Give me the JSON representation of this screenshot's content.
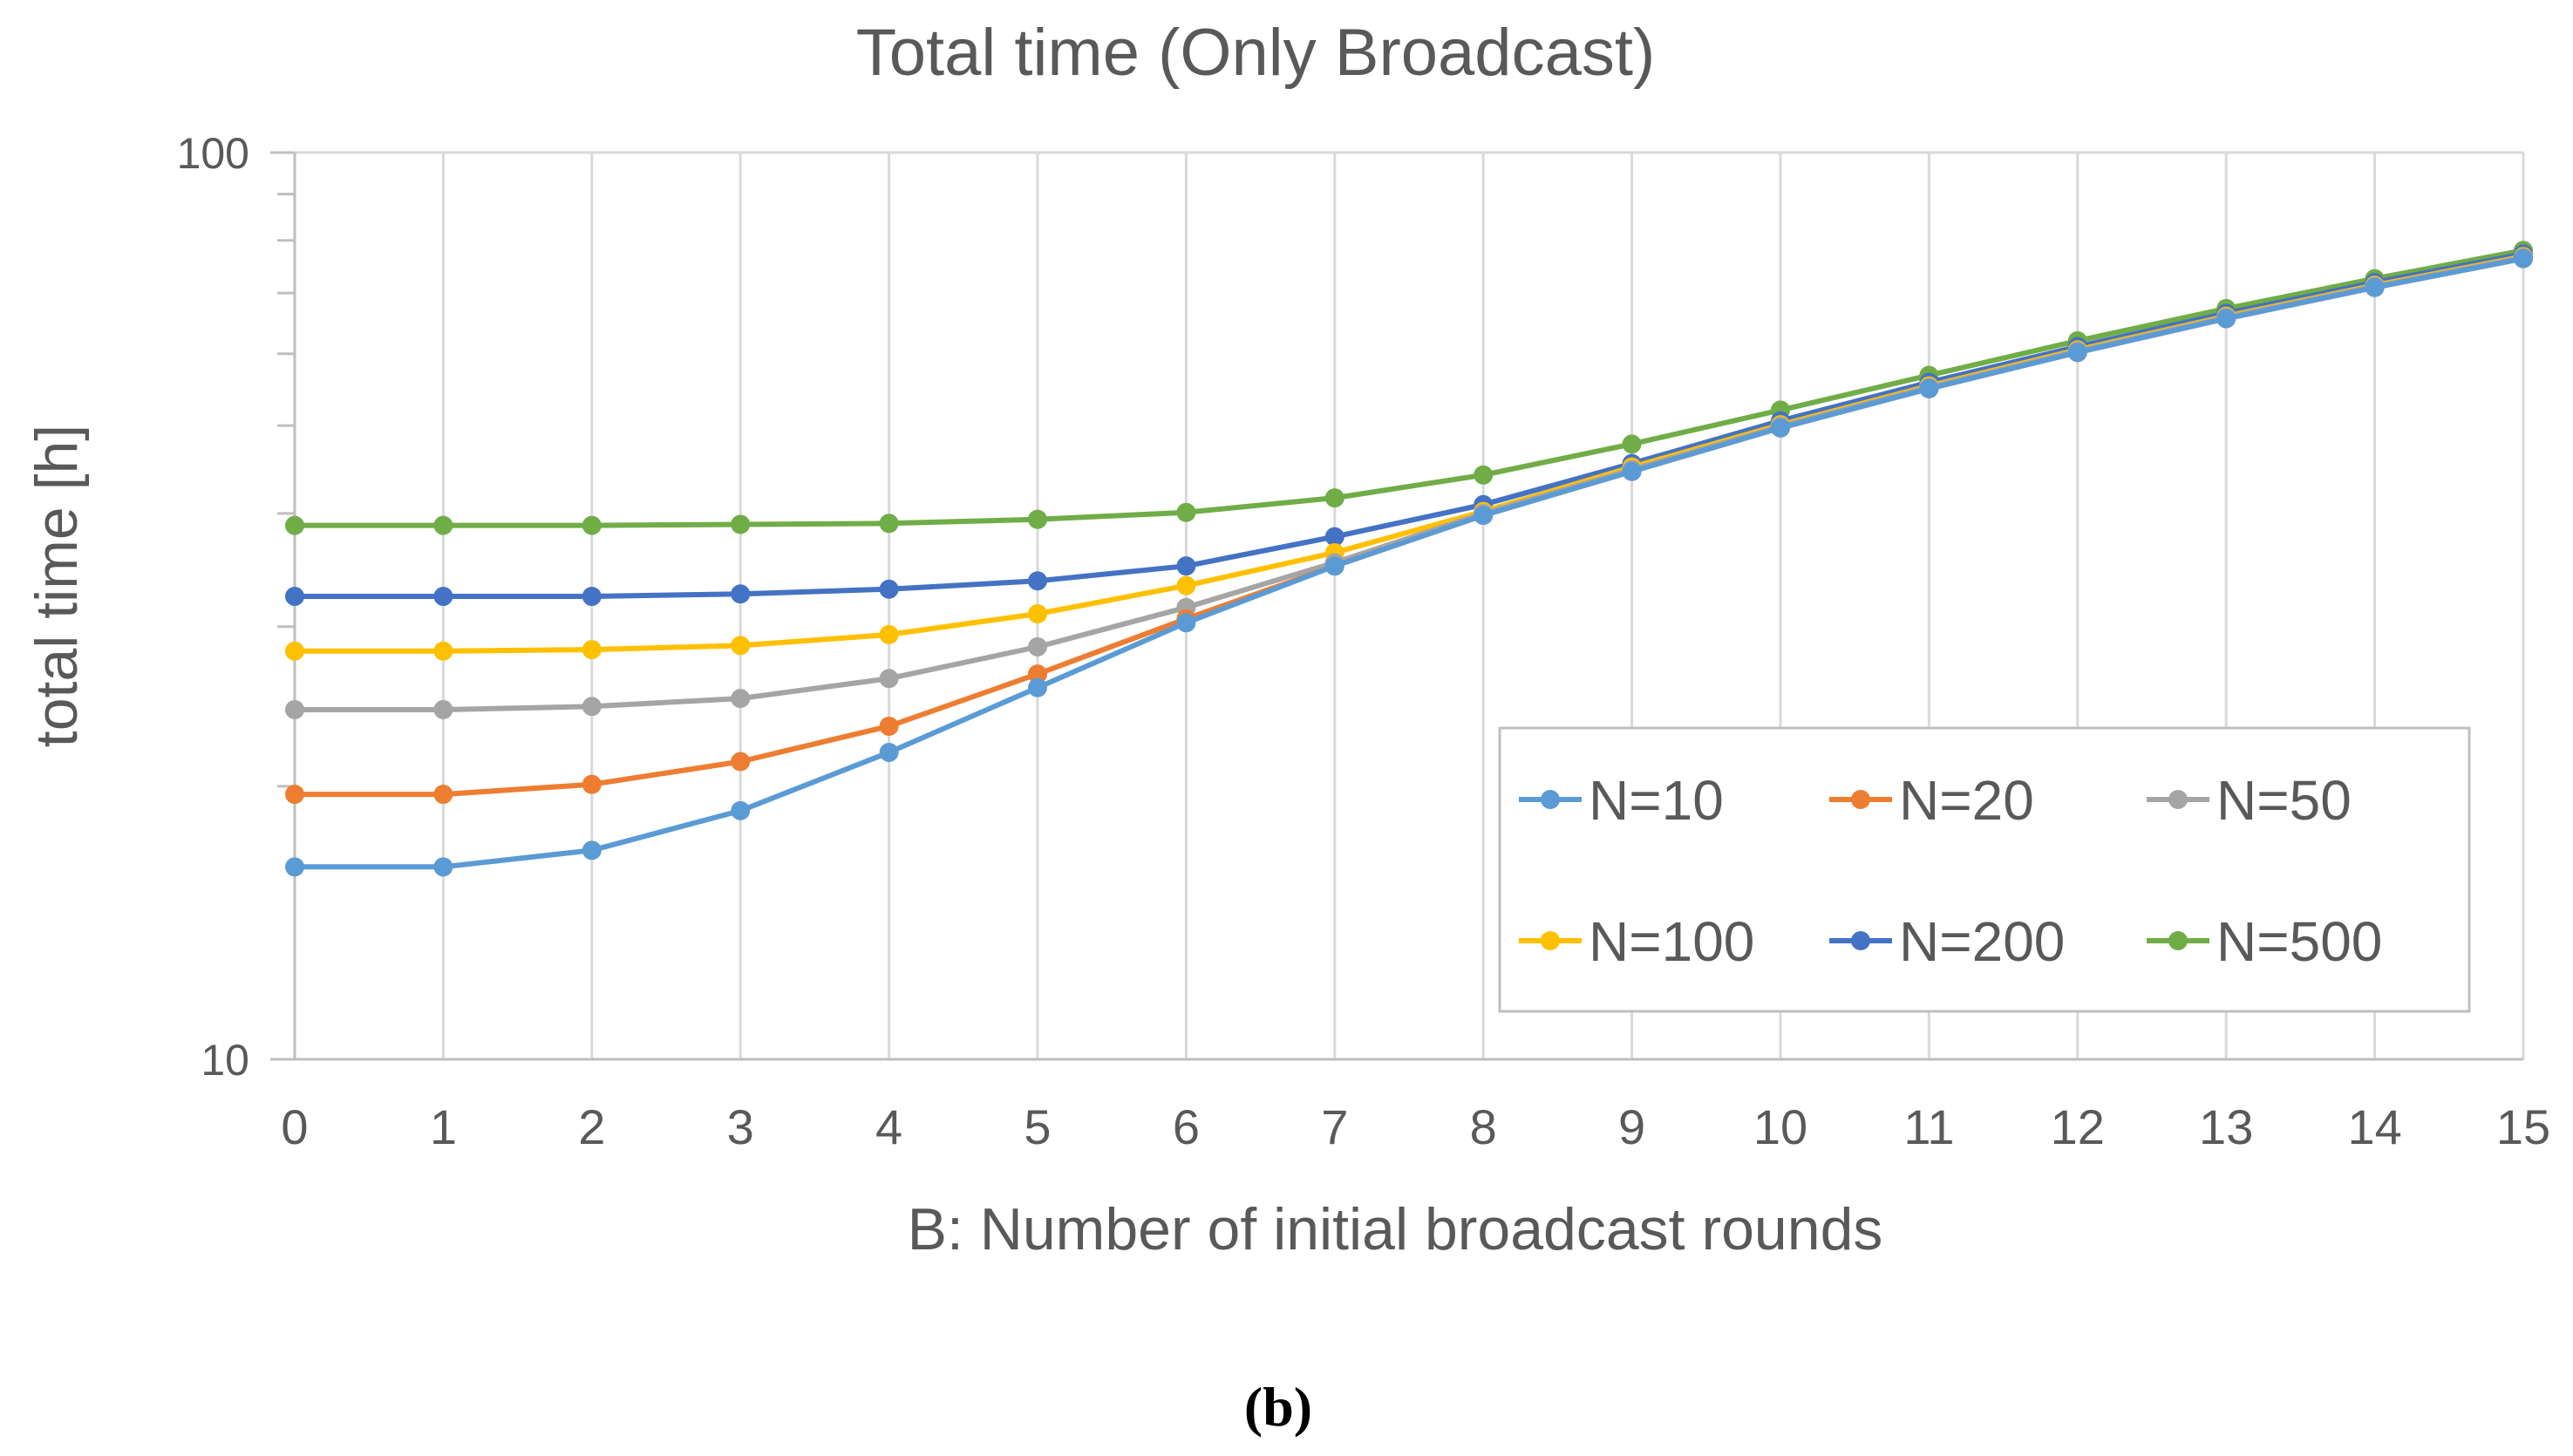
{
  "chart_data": {
    "type": "line",
    "title": "Total time (Only Broadcast)",
    "xlabel": "B: Number of initial broadcast rounds",
    "ylabel": "total time [h]",
    "yscale": "log",
    "ylim": [
      10,
      100
    ],
    "y_tick_labels": [
      "10",
      "100"
    ],
    "x": [
      0,
      1,
      2,
      3,
      4,
      5,
      6,
      7,
      8,
      9,
      10,
      11,
      12,
      13,
      14,
      15
    ],
    "x_tick_labels": [
      "0",
      "1",
      "2",
      "3",
      "4",
      "5",
      "6",
      "7",
      "8",
      "9",
      "10",
      "11",
      "12",
      "13",
      "14",
      "15"
    ],
    "grid": true,
    "legend_position": "bottom-right",
    "series": [
      {
        "name": "N=10",
        "color": "#5B9BD5",
        "values": [
          16.3,
          16.3,
          17.0,
          18.8,
          21.8,
          25.7,
          30.3,
          35.0,
          39.8,
          44.5,
          49.7,
          54.9,
          60.2,
          65.6,
          71.0,
          76.4
        ]
      },
      {
        "name": "N=20",
        "color": "#ED7D31",
        "values": [
          19.6,
          19.6,
          20.1,
          21.3,
          23.3,
          26.6,
          30.6,
          35.0,
          39.8,
          44.5,
          49.7,
          54.9,
          60.2,
          65.6,
          71.0,
          76.4
        ]
      },
      {
        "name": "N=50",
        "color": "#A5A5A5",
        "values": [
          24.3,
          24.3,
          24.5,
          25.0,
          26.3,
          28.5,
          31.5,
          35.3,
          40.0,
          44.7,
          49.9,
          55.1,
          60.4,
          65.8,
          71.2,
          76.6
        ]
      },
      {
        "name": "N=100",
        "color": "#FFC000",
        "values": [
          28.2,
          28.2,
          28.3,
          28.6,
          29.4,
          31.0,
          33.3,
          36.2,
          40.2,
          45.0,
          50.1,
          55.3,
          60.6,
          66.0,
          71.4,
          76.8
        ]
      },
      {
        "name": "N=200",
        "color": "#4472C4",
        "values": [
          32.4,
          32.4,
          32.4,
          32.6,
          33.0,
          33.7,
          35.0,
          37.7,
          40.9,
          45.4,
          50.6,
          55.8,
          61.1,
          66.5,
          71.9,
          77.3
        ]
      },
      {
        "name": "N=500",
        "color": "#70AD47",
        "values": [
          38.8,
          38.8,
          38.8,
          38.9,
          39.0,
          39.4,
          40.1,
          41.6,
          44.1,
          47.7,
          52.0,
          56.8,
          62.0,
          67.3,
          72.6,
          78.0
        ]
      }
    ]
  },
  "panel_label": "(b)"
}
